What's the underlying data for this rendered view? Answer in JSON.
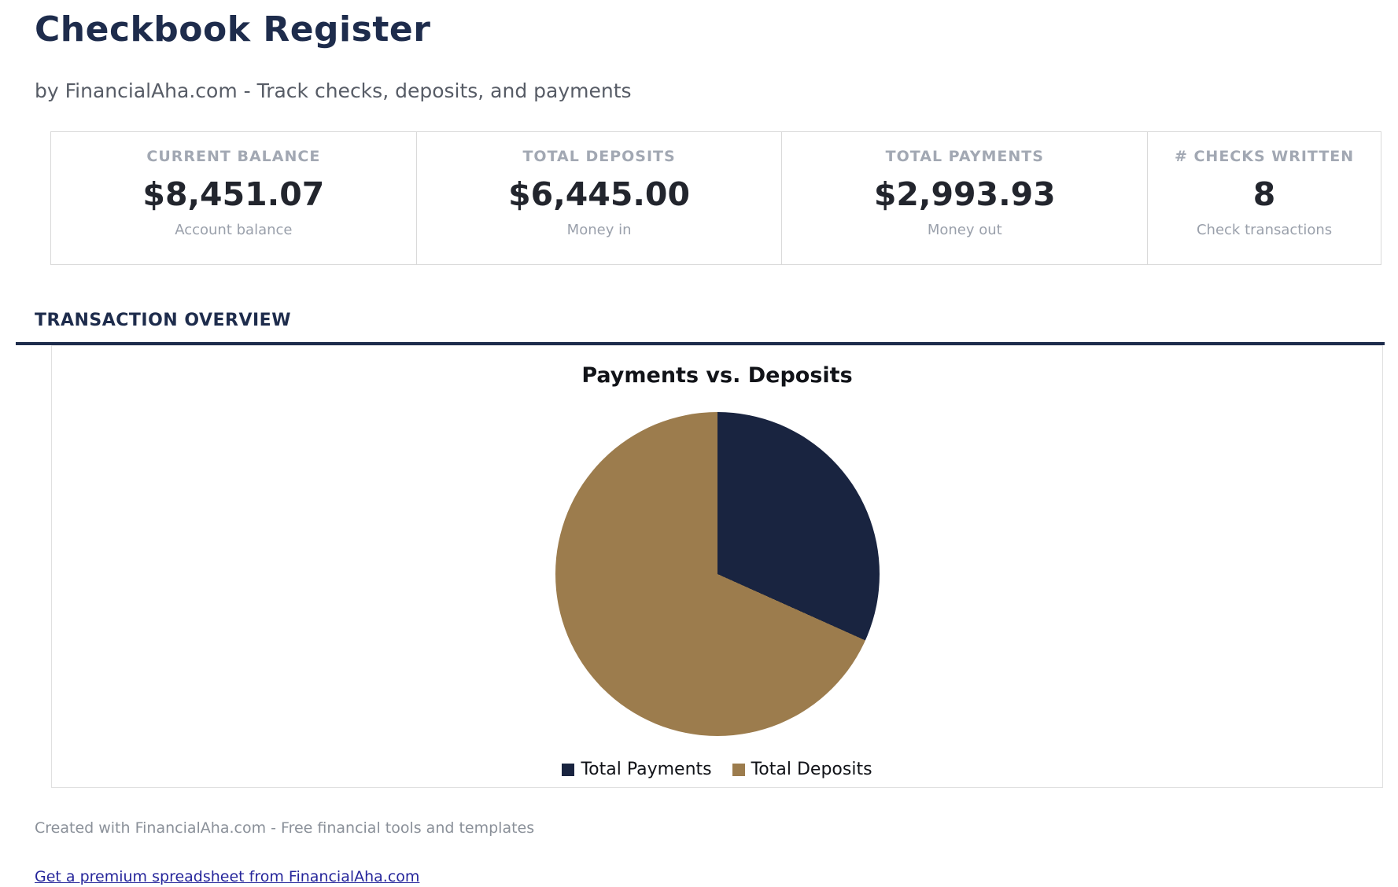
{
  "header": {
    "title": "Checkbook Register",
    "subtitle": "by FinancialAha.com - Track checks, deposits, and payments"
  },
  "stats": [
    {
      "label": "CURRENT BALANCE",
      "value": "$8,451.07",
      "sublabel": "Account balance"
    },
    {
      "label": "TOTAL DEPOSITS",
      "value": "$6,445.00",
      "sublabel": "Money in"
    },
    {
      "label": "TOTAL PAYMENTS",
      "value": "$2,993.93",
      "sublabel": "Money out"
    },
    {
      "label": "# CHECKS WRITTEN",
      "value": "8",
      "sublabel": "Check transactions"
    }
  ],
  "section": {
    "title": "TRANSACTION OVERVIEW"
  },
  "chart_data": {
    "type": "pie",
    "title": "Payments vs. Deposits",
    "labels": [
      "Total Payments",
      "Total Deposits"
    ],
    "values": [
      2993.93,
      6445.0
    ],
    "colors": [
      "#192440",
      "#9c7c4d"
    ],
    "legend_position": "bottom",
    "start_angle_deg": 0,
    "direction": "clockwise"
  },
  "footer": {
    "credit": "Created with FinancialAha.com - Free financial tools and templates",
    "link_text": "Get a premium spreadsheet from FinancialAha.com"
  },
  "theme": {
    "accent_navy": "#1e2c4c",
    "pie_navy": "#192440",
    "pie_tan": "#9c7c4d",
    "link_color": "#26269b"
  }
}
